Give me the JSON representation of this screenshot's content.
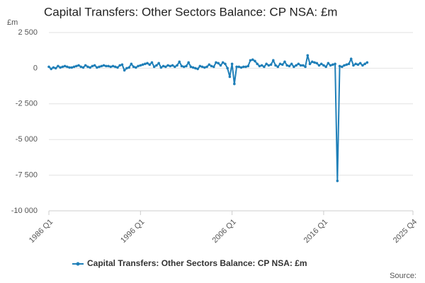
{
  "chart_data": {
    "type": "line",
    "title": "Capital Transfers: Other Sectors Balance: CP NSA: £m",
    "y_label": "£m",
    "source": "Source:",
    "x": [
      "1986 Q1",
      "1986 Q2",
      "1986 Q3",
      "1986 Q4",
      "1987 Q1",
      "1987 Q2",
      "1987 Q3",
      "1987 Q4",
      "1988 Q1",
      "1988 Q2",
      "1988 Q3",
      "1988 Q4",
      "1989 Q1",
      "1989 Q2",
      "1989 Q3",
      "1989 Q4",
      "1990 Q1",
      "1990 Q2",
      "1990 Q3",
      "1990 Q4",
      "1991 Q1",
      "1991 Q2",
      "1991 Q3",
      "1991 Q4",
      "1992 Q1",
      "1992 Q2",
      "1992 Q3",
      "1992 Q4",
      "1993 Q1",
      "1993 Q2",
      "1993 Q3",
      "1993 Q4",
      "1994 Q1",
      "1994 Q2",
      "1994 Q3",
      "1994 Q4",
      "1995 Q1",
      "1995 Q2",
      "1995 Q3",
      "1995 Q4",
      "1996 Q1",
      "1996 Q2",
      "1996 Q3",
      "1996 Q4",
      "1997 Q1",
      "1997 Q2",
      "1997 Q3",
      "1997 Q4",
      "1998 Q1",
      "1998 Q2",
      "1998 Q3",
      "1998 Q4",
      "1999 Q1",
      "1999 Q2",
      "1999 Q3",
      "1999 Q4",
      "2000 Q1",
      "2000 Q2",
      "2000 Q3",
      "2000 Q4",
      "2001 Q1",
      "2001 Q2",
      "2001 Q3",
      "2001 Q4",
      "2002 Q1",
      "2002 Q2",
      "2002 Q3",
      "2002 Q4",
      "2003 Q1",
      "2003 Q2",
      "2003 Q3",
      "2003 Q4",
      "2004 Q1",
      "2004 Q2",
      "2004 Q3",
      "2004 Q4",
      "2005 Q1",
      "2005 Q2",
      "2005 Q3",
      "2005 Q4",
      "2006 Q1",
      "2006 Q2",
      "2006 Q3",
      "2006 Q4",
      "2007 Q1",
      "2007 Q2",
      "2007 Q3",
      "2007 Q4",
      "2008 Q1",
      "2008 Q2",
      "2008 Q3",
      "2008 Q4",
      "2009 Q1",
      "2009 Q2",
      "2009 Q3",
      "2009 Q4",
      "2010 Q1",
      "2010 Q2",
      "2010 Q3",
      "2010 Q4",
      "2011 Q1",
      "2011 Q2",
      "2011 Q3",
      "2011 Q4",
      "2012 Q1",
      "2012 Q2",
      "2012 Q3",
      "2012 Q4",
      "2013 Q1",
      "2013 Q2",
      "2013 Q3",
      "2013 Q4",
      "2014 Q1",
      "2014 Q2",
      "2014 Q3",
      "2014 Q4",
      "2015 Q1",
      "2015 Q2",
      "2015 Q3",
      "2015 Q4",
      "2016 Q1",
      "2016 Q2",
      "2016 Q3",
      "2016 Q4",
      "2017 Q1",
      "2017 Q2",
      "2017 Q3",
      "2017 Q4",
      "2018 Q1",
      "2018 Q2",
      "2018 Q3",
      "2018 Q4",
      "2019 Q1",
      "2019 Q2",
      "2019 Q3",
      "2019 Q4",
      "2020 Q1",
      "2020 Q2",
      "2020 Q3",
      "2020 Q4"
    ],
    "series": [
      {
        "name": "Capital Transfers: Other Sectors Balance: CP NSA: £m",
        "color": "#1f7fb8",
        "values": [
          100,
          -50,
          50,
          0,
          150,
          50,
          100,
          150,
          100,
          50,
          50,
          100,
          150,
          200,
          100,
          50,
          200,
          100,
          50,
          150,
          200,
          50,
          100,
          150,
          200,
          150,
          150,
          100,
          150,
          100,
          50,
          200,
          250,
          -150,
          0,
          50,
          300,
          100,
          50,
          150,
          200,
          250,
          300,
          350,
          250,
          400,
          100,
          200,
          350,
          50,
          150,
          100,
          200,
          150,
          200,
          100,
          200,
          450,
          150,
          100,
          150,
          400,
          100,
          50,
          0,
          -50,
          150,
          100,
          50,
          100,
          250,
          150,
          100,
          400,
          350,
          200,
          400,
          300,
          0,
          -600,
          300,
          -1100,
          100,
          100,
          50,
          100,
          100,
          150,
          550,
          600,
          500,
          300,
          150,
          200,
          100,
          300,
          200,
          250,
          550,
          200,
          100,
          300,
          250,
          450,
          200,
          150,
          300,
          100,
          200,
          300,
          200,
          200,
          100,
          900,
          300,
          450,
          400,
          350,
          200,
          300,
          200,
          100,
          350,
          200,
          250,
          300,
          -7900,
          150,
          100,
          200,
          250,
          300,
          650,
          200,
          300,
          250,
          350,
          200,
          300,
          400
        ]
      }
    ],
    "xlim": [
      "1986 Q1",
      "2025 Q4"
    ],
    "xticks": [
      "1986 Q1",
      "1996 Q1",
      "2006 Q1",
      "2016 Q1",
      "2025 Q4"
    ],
    "ylim": [
      -10000,
      2500
    ],
    "yticks": [
      {
        "value": -10000,
        "label": "-10 000"
      },
      {
        "value": -7500,
        "label": "-7 500"
      },
      {
        "value": -5000,
        "label": "-5 000"
      },
      {
        "value": -2500,
        "label": "-2 500"
      },
      0,
      {
        "value": 2500,
        "label": "2 500"
      }
    ],
    "grid": true
  }
}
